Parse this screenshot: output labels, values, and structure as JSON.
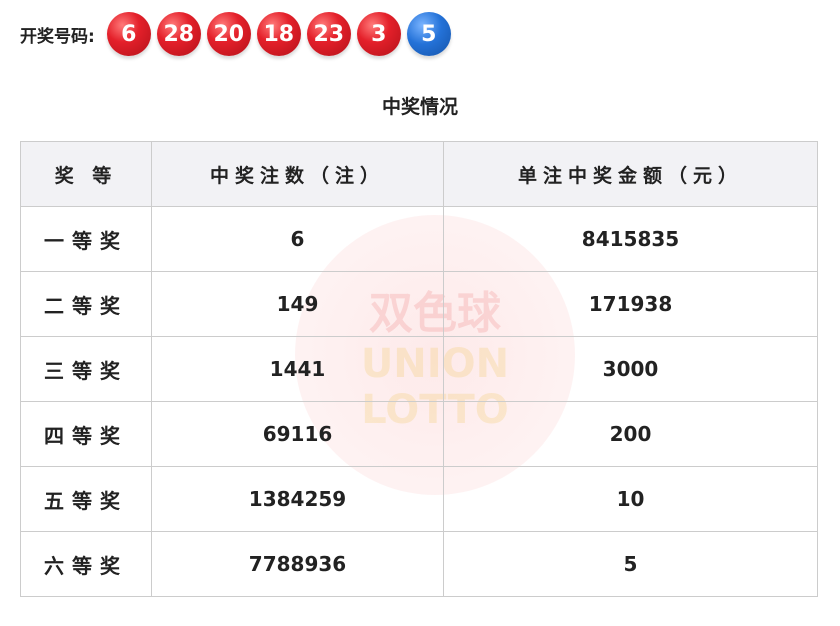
{
  "draw": {
    "label": "开奖号码:",
    "red_balls": [
      "6",
      "28",
      "20",
      "18",
      "23",
      "3"
    ],
    "blue_balls": [
      "5"
    ]
  },
  "title": "中奖情况",
  "watermark": {
    "line1": "双色球",
    "line2": "UNION",
    "line3": "LOTTO"
  },
  "table": {
    "headers": [
      "奖 等",
      "中奖注数（注）",
      "单注中奖金额（元）"
    ],
    "rows": [
      [
        "一等奖",
        "6",
        "8415835"
      ],
      [
        "二等奖",
        "149",
        "171938"
      ],
      [
        "三等奖",
        "1441",
        "3000"
      ],
      [
        "四等奖",
        "69116",
        "200"
      ],
      [
        "五等奖",
        "1384259",
        "10"
      ],
      [
        "六等奖",
        "7788936",
        "5"
      ]
    ]
  },
  "colors": {
    "red_ball": "#e4202a",
    "blue_ball": "#2472d8",
    "header_bg": "#f2f2f5"
  }
}
